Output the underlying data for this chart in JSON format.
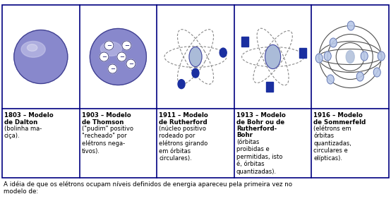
{
  "background_color": "#ffffff",
  "border_color": "#000080",
  "figsize": [
    5.54,
    3.09
  ],
  "dpi": 100,
  "col_years": [
    "1803",
    "1903",
    "1911",
    "1913",
    "1916"
  ],
  "col_bold_titles": [
    [
      "Modelo",
      "de Dalton"
    ],
    [
      "Modelo",
      "de Thomson"
    ],
    [
      "Modelo",
      "de Rutherford"
    ],
    [
      "Modelo",
      "de Bohr ou de",
      "Rutherford-",
      "Bohr"
    ],
    [
      "Modelo",
      "de Sommerfeld"
    ]
  ],
  "col_descriptions": [
    "(bolinha ma-\nciça).",
    "(\"pudim\" positivo\n\"recheado\" por\nelétrons nega-\ntivos).",
    "(núcleo positivo\nrodeado por\nelétrons girando\nem órbitas\ncirculares).",
    "(órbitas\nproibidas e\npermitidas, isto\né, órbitas\nquantizadas).",
    "(elétrons em\nórbitas\nquantizadas,\ncirculares e\nelípticas)."
  ],
  "footer_text": "A idéia de que os elétrons ocupam níveis definidos de energia apareceu pela primeira vez no\nmodelo de:",
  "sphere_color": "#8888cc",
  "sphere_highlight": "#ccccee",
  "nucleus_color": "#aabbd8",
  "electron_color": "#1a2fa0",
  "electron_light": "#b8c8e8",
  "orbit_color": "#888888",
  "text_color": "#000000"
}
